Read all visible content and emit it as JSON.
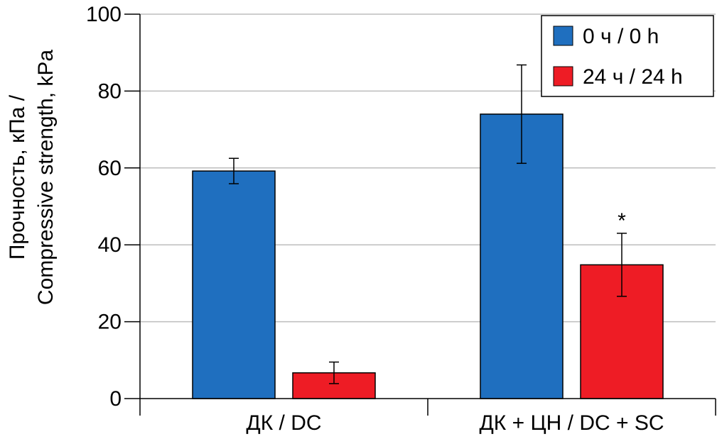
{
  "chart_data": {
    "type": "bar",
    "categories": [
      "ДК / DC",
      "ДК + ЦН / DC + SC"
    ],
    "series": [
      {
        "name": "0 ч / 0 h",
        "color": "#1f6fbf",
        "values": [
          59.2,
          74.0
        ],
        "errors": [
          3.3,
          12.8
        ]
      },
      {
        "name": "24 ч / 24 h",
        "color": "#ee1c25",
        "values": [
          6.7,
          34.8
        ],
        "errors": [
          2.8,
          8.2
        ]
      }
    ],
    "ylabel_line1": "Прочность, кПа /",
    "ylabel_line2": "Compressive strength, kPa",
    "ylim": [
      0,
      100
    ],
    "yticks": [
      0,
      20,
      40,
      60,
      80,
      100
    ],
    "grid": true,
    "legend_position": "top-right",
    "annotations": [
      {
        "series": 1,
        "category": 1,
        "text": "*"
      }
    ]
  }
}
